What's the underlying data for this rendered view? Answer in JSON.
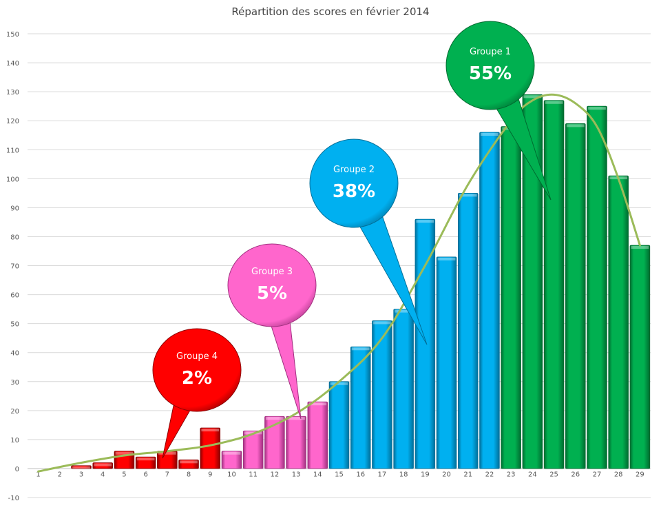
{
  "chart_data": {
    "type": "bar",
    "title": "Répartition des scores en février 2014",
    "xlabel": "",
    "ylabel": "",
    "categories": [
      "1",
      "2",
      "3",
      "4",
      "5",
      "6",
      "7",
      "8",
      "9",
      "10",
      "11",
      "12",
      "13",
      "14",
      "15",
      "16",
      "17",
      "18",
      "19",
      "20",
      "21",
      "22",
      "23",
      "24",
      "25",
      "26",
      "27",
      "28",
      "29"
    ],
    "values": [
      0,
      0,
      1,
      2,
      6,
      4,
      6,
      3,
      14,
      6,
      13,
      18,
      18,
      23,
      30,
      42,
      51,
      55,
      86,
      73,
      95,
      116,
      118,
      129,
      127,
      119,
      125,
      101,
      77
    ],
    "group_of": [
      4,
      4,
      4,
      4,
      4,
      4,
      4,
      4,
      4,
      3,
      3,
      3,
      3,
      3,
      2,
      2,
      2,
      2,
      2,
      2,
      2,
      2,
      1,
      1,
      1,
      1,
      1,
      1,
      1
    ],
    "ylim": [
      -10,
      150
    ],
    "y_ticks": [
      -10,
      0,
      10,
      20,
      30,
      40,
      50,
      60,
      70,
      80,
      90,
      100,
      110,
      120,
      130,
      140,
      150
    ],
    "grid": true,
    "trend_line": {
      "x": [
        1,
        3,
        5,
        7,
        9,
        11,
        13,
        15,
        17,
        19,
        21,
        23,
        24,
        25,
        26,
        27,
        28,
        29
      ],
      "y": [
        -1,
        2,
        4.5,
        6,
        8,
        12,
        19,
        30,
        45,
        70,
        98,
        120,
        127,
        129,
        126,
        118,
        100,
        77
      ],
      "color": "#9bbb59"
    },
    "groups": [
      {
        "id": 1,
        "label": "Groupe  1",
        "percent": "55%",
        "color": "#00b050",
        "dark": "#006b30"
      },
      {
        "id": 2,
        "label": "Groupe  2",
        "percent": "38%",
        "color": "#00b0f0",
        "dark": "#006f99"
      },
      {
        "id": 3,
        "label": "Groupe  3",
        "percent": "5%",
        "color": "#ff66cc",
        "dark": "#a0307f"
      },
      {
        "id": 4,
        "label": "Groupe  4",
        "percent": "2%",
        "color": "#ff0000",
        "dark": "#8a0000"
      }
    ]
  }
}
